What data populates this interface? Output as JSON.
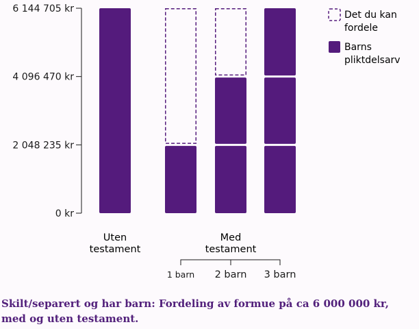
{
  "colors": {
    "pliktdel": "#541b7c",
    "divider": "#ffffff",
    "axis": "#1a1a1a",
    "caption": "#52207b"
  },
  "legend": {
    "free_label_line1": "Det du kan",
    "free_label_line2": "fordele",
    "pliktdel_label_line1": "Barns",
    "pliktdel_label_line2": "pliktdelsarv"
  },
  "groups": {
    "uten_line1": "Uten",
    "uten_line2": "testament",
    "med_line1": "Med",
    "med_line2": "testament"
  },
  "caption": "Skilt/separert og har barn: Fordeling av formue på ca 6 000 000 kr, med og uten testament.",
  "chart_data": {
    "type": "bar",
    "stacked": true,
    "ylim": [
      0,
      6144705
    ],
    "yticks": [
      0,
      2048235,
      4096470,
      6144705
    ],
    "ytick_labels": [
      "0 kr",
      "2 048 235 kr",
      "4 096 470 kr",
      "6 144 705 kr"
    ],
    "categories": [
      "Uten testament",
      "1 barn",
      "2 barn",
      "3 barn"
    ],
    "category_labels": [
      "",
      "1 barn",
      "2 barn",
      "3 barn"
    ],
    "bars": [
      {
        "segments": [
          {
            "kind": "pliktdel",
            "value": 6144705
          }
        ]
      },
      {
        "segments": [
          {
            "kind": "pliktdel",
            "value": 2048235
          },
          {
            "kind": "free",
            "value": 4096470
          }
        ]
      },
      {
        "segments": [
          {
            "kind": "pliktdel",
            "value": 2048235
          },
          {
            "kind": "pliktdel",
            "value": 2048235
          },
          {
            "kind": "free",
            "value": 2048235
          }
        ]
      },
      {
        "segments": [
          {
            "kind": "pliktdel",
            "value": 2048235
          },
          {
            "kind": "pliktdel",
            "value": 2048235
          },
          {
            "kind": "pliktdel",
            "value": 2048235
          }
        ]
      }
    ],
    "series": [
      {
        "name": "Det du kan fordele",
        "kind": "free"
      },
      {
        "name": "Barns pliktdelsarv",
        "kind": "pliktdel"
      }
    ],
    "legend_position": "top-right",
    "grid": false
  }
}
